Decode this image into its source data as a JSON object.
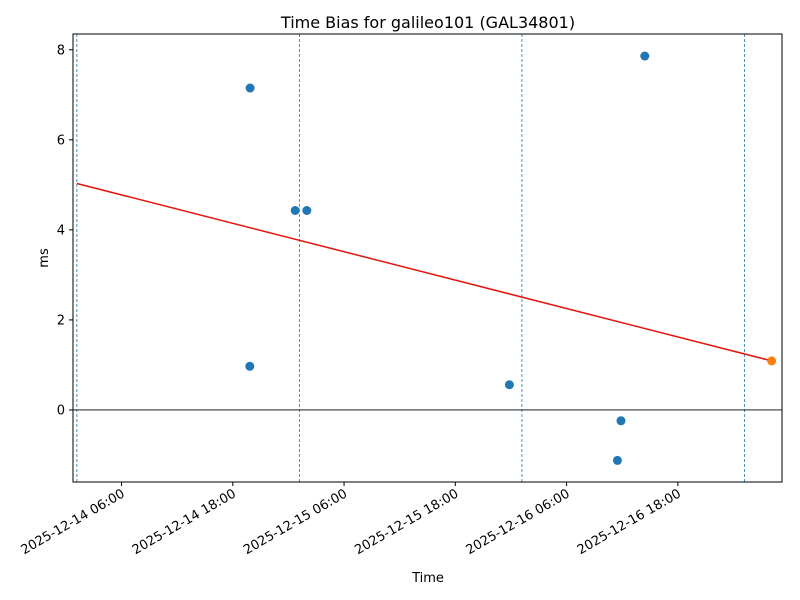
{
  "chart_data": {
    "type": "scatter",
    "title": "Time Bias for galileo101 (GAL34801)",
    "xlabel": "Time",
    "ylabel": "ms",
    "xlim": [
      "2025-12-14 00:46",
      "2025-12-17 05:14"
    ],
    "ylim": [
      -1.6,
      8.35
    ],
    "x_ticks": [
      "2025-12-14 06:00",
      "2025-12-14 18:00",
      "2025-12-15 06:00",
      "2025-12-15 18:00",
      "2025-12-16 06:00",
      "2025-12-16 18:00"
    ],
    "y_ticks": [
      0,
      2,
      4,
      6,
      8
    ],
    "series": [
      {
        "color": "#1f77b4",
        "x": [
          "2025-12-14 19:52",
          "2025-12-14 19:50",
          "2025-12-15 00:44",
          "2025-12-15 01:59",
          "2025-12-15 23:50",
          "2025-12-16 11:52",
          "2025-12-16 11:29",
          "2025-12-16 14:26"
        ],
        "y": [
          7.15,
          0.97,
          4.43,
          4.43,
          0.56,
          -0.24,
          -1.12,
          7.86
        ]
      },
      {
        "color": "#ff7f0e",
        "x": [
          "2025-12-17 04:07"
        ],
        "y": [
          1.09
        ]
      }
    ],
    "trend_line": {
      "color": "#e8120c",
      "x": [
        "2025-12-14 01:11",
        "2025-12-17 04:07"
      ],
      "y": [
        5.03,
        1.09
      ]
    },
    "vertical_lines": {
      "color": "#1f77b4",
      "style": "dashed",
      "x": [
        "2025-12-14 01:11",
        "2025-12-15 01:11",
        "2025-12-16 01:11",
        "2025-12-17 01:11"
      ]
    },
    "horizontal_line": {
      "y": 0,
      "color": "#000000"
    },
    "grid": false,
    "legend": "none"
  }
}
